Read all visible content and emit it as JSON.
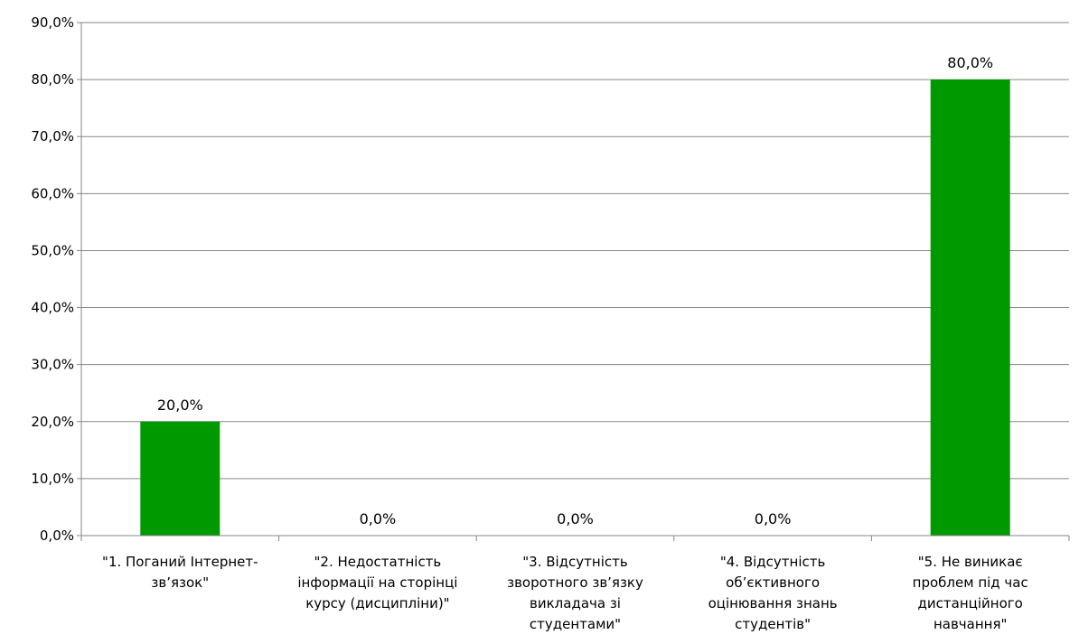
{
  "chart_data": {
    "type": "bar",
    "categories": [
      [
        "\"1. Поганий Інтернет-",
        "зв’язок\""
      ],
      [
        "\"2. Недостатність",
        "інформації на сторінці",
        "курсу (дисципліни)\""
      ],
      [
        "\"3. Відсутність",
        "зворотного зв’язку",
        "викладача зі",
        "студентами\""
      ],
      [
        "\"4. Відсутність",
        "об’єктивного",
        "оцінювання знань",
        "студентів\""
      ],
      [
        "\"5. Не виникає",
        "проблем під час",
        "дистанційного",
        "навчання\""
      ]
    ],
    "values": [
      20.0,
      0.0,
      0.0,
      0.0,
      80.0
    ],
    "data_labels": [
      "20,0%",
      "0,0%",
      "0,0%",
      "0,0%",
      "80,0%"
    ],
    "y_ticks": [
      "0,0%",
      "10,0%",
      "20,0%",
      "30,0%",
      "40,0%",
      "50,0%",
      "60,0%",
      "70,0%",
      "80,0%",
      "90,0%"
    ],
    "ylim": [
      0,
      90
    ],
    "grid": true,
    "bar_color": "#009900",
    "grid_color": "#868686",
    "title": "",
    "xlabel": "",
    "ylabel": ""
  }
}
